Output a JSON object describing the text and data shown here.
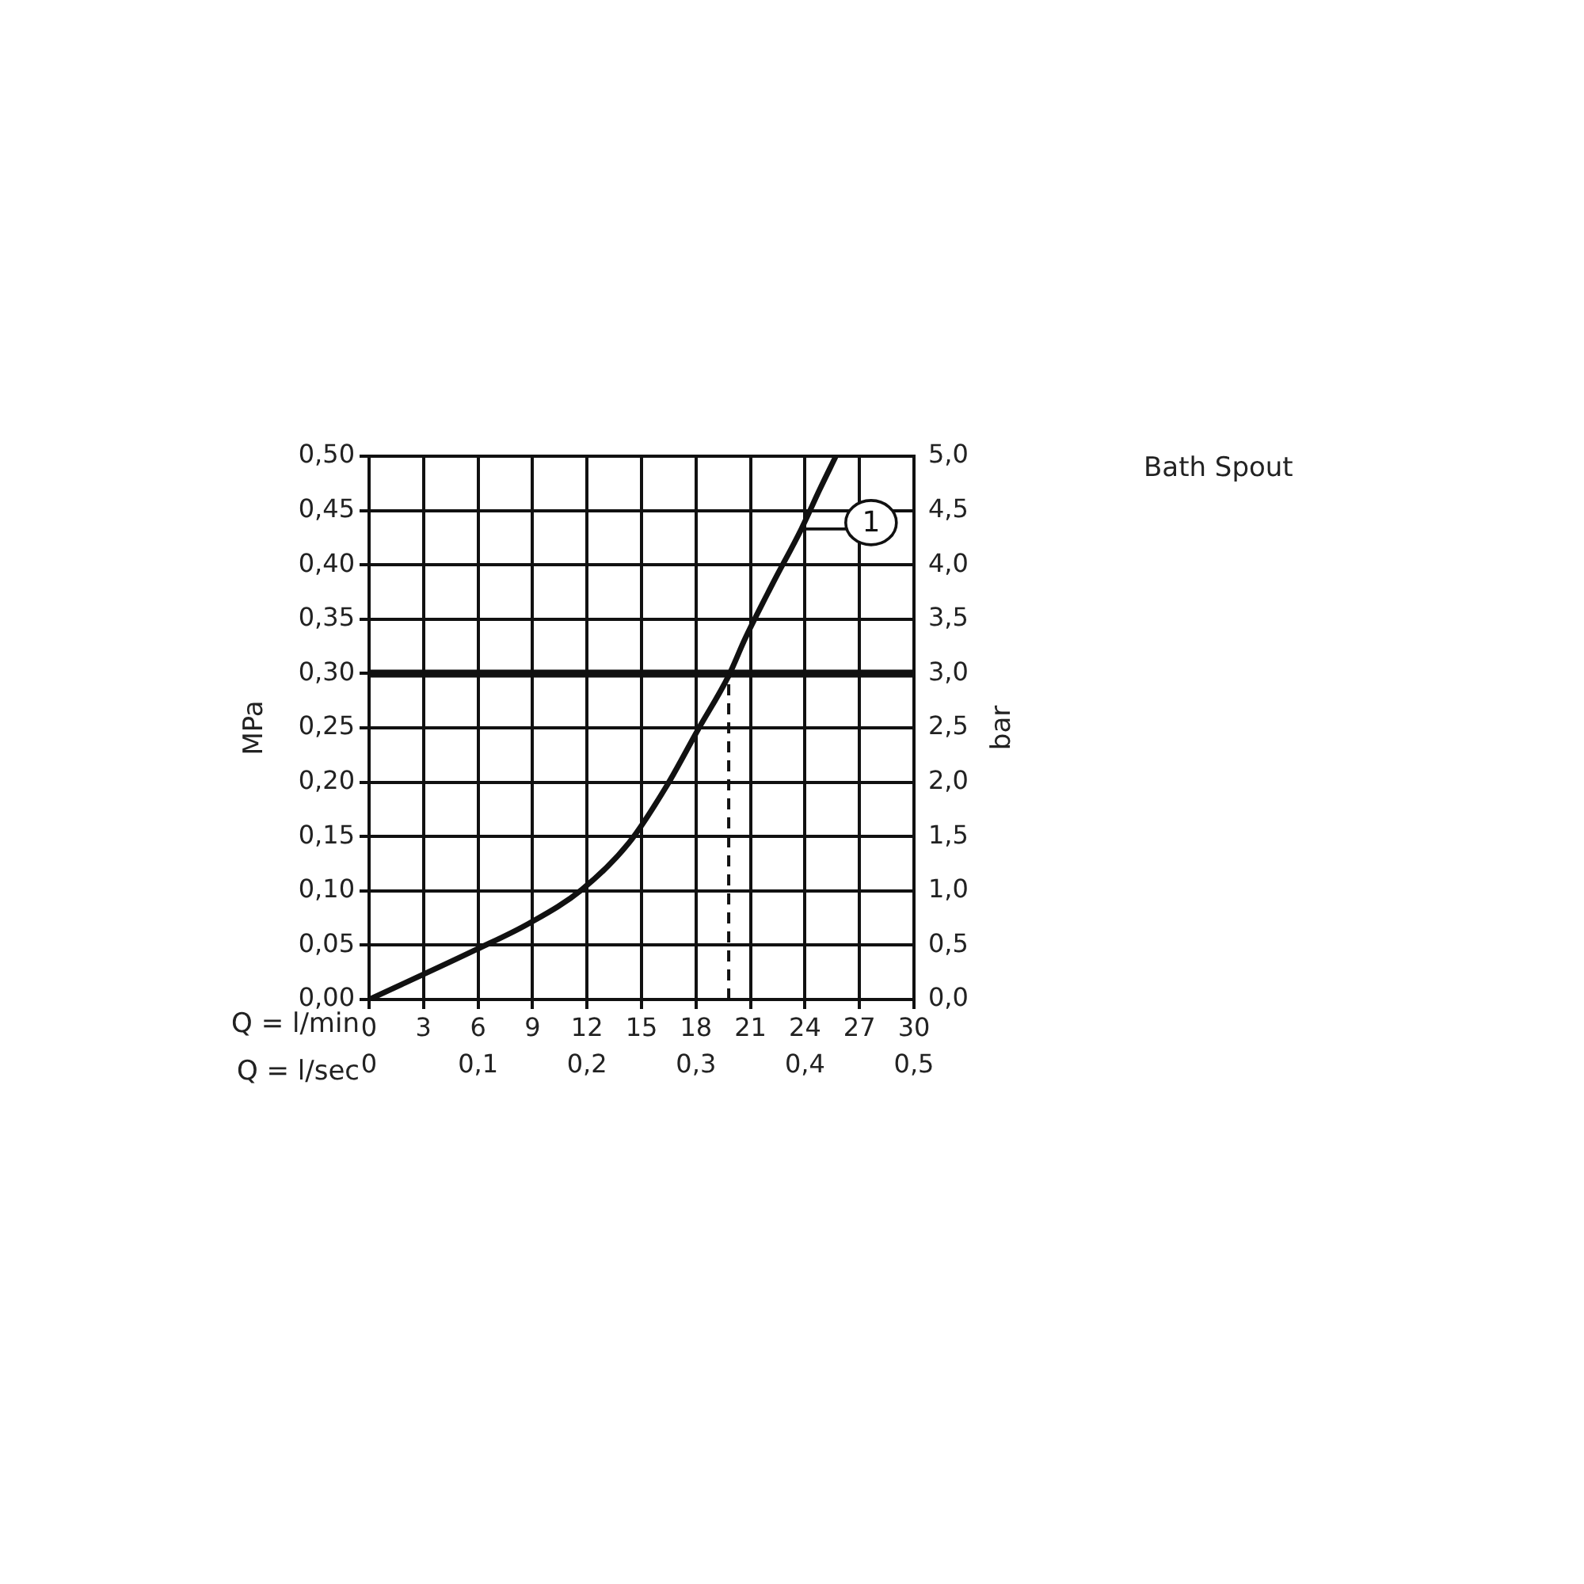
{
  "chart_data": {
    "type": "line",
    "title": "Bath Spout",
    "xlabel": "Q = l/min",
    "x2label": "Q = l/sec",
    "ylabel": "MPa",
    "y2label": "bar",
    "xlim": [
      0,
      30
    ],
    "xticks": [
      0,
      3,
      6,
      9,
      12,
      15,
      18,
      21,
      24,
      27,
      30
    ],
    "x2lim": [
      0,
      0.5
    ],
    "x2ticks": [
      {
        "value": 0,
        "label": "0"
      },
      {
        "value": 0.1,
        "label": "0,1"
      },
      {
        "value": 0.2,
        "label": "0,2"
      },
      {
        "value": 0.3,
        "label": "0,3"
      },
      {
        "value": 0.4,
        "label": "0,4"
      },
      {
        "value": 0.5,
        "label": "0,5"
      }
    ],
    "ylim": [
      0,
      0.5
    ],
    "yticks": [
      {
        "value": 0,
        "label": "0,00"
      },
      {
        "value": 0.05,
        "label": "0,05"
      },
      {
        "value": 0.1,
        "label": "0,10"
      },
      {
        "value": 0.15,
        "label": "0,15"
      },
      {
        "value": 0.2,
        "label": "0,20"
      },
      {
        "value": 0.25,
        "label": "0,25"
      },
      {
        "value": 0.3,
        "label": "0,30"
      },
      {
        "value": 0.35,
        "label": "0,35"
      },
      {
        "value": 0.4,
        "label": "0,40"
      },
      {
        "value": 0.45,
        "label": "0,45"
      },
      {
        "value": 0.5,
        "label": "0,50"
      }
    ],
    "y2lim": [
      0,
      5
    ],
    "y2ticks": [
      {
        "value": 0,
        "label": "0,0"
      },
      {
        "value": 0.5,
        "label": "0,5"
      },
      {
        "value": 1,
        "label": "1,0"
      },
      {
        "value": 1.5,
        "label": "1,5"
      },
      {
        "value": 2,
        "label": "2,0"
      },
      {
        "value": 2.5,
        "label": "2,5"
      },
      {
        "value": 3,
        "label": "3,0"
      },
      {
        "value": 3.5,
        "label": "3,5"
      },
      {
        "value": 4,
        "label": "4,0"
      },
      {
        "value": 4.5,
        "label": "4,5"
      },
      {
        "value": 5,
        "label": "5,0"
      }
    ],
    "grid": true,
    "legend": false,
    "marker": "none",
    "line_style": "solid",
    "series": [
      {
        "color": "#111111",
        "x": [
          0,
          5.9,
          8.8,
          11.7,
          14.3,
          16.4,
          18.1,
          19.8,
          20.7,
          22.2,
          23.8,
          24.8,
          25.7
        ],
        "values": [
          0,
          0.046,
          0.07,
          0.101,
          0.144,
          0.197,
          0.248,
          0.298,
          0.332,
          0.382,
          0.433,
          0.469,
          0.5
        ]
      }
    ],
    "ref_lines": [
      {
        "axis": "y",
        "value": 0.3,
        "color": "#111111",
        "line_style": "solid"
      },
      {
        "axis": "x",
        "value": 19.8,
        "color": "#111111",
        "line_style": "dashed"
      }
    ],
    "annotations": [
      {
        "text": "1",
        "x": 23.8,
        "y": 0.433
      }
    ]
  }
}
